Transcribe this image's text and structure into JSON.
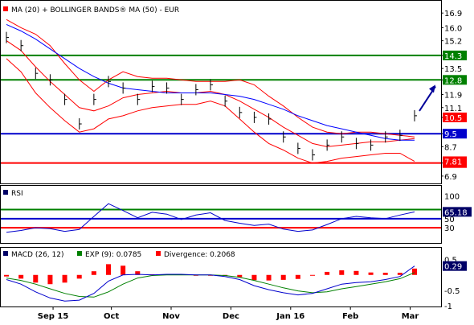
{
  "panels": {
    "price": {
      "legend": "MA (20) + BOLLINGER BANDS® MA (50) - EUR",
      "axis_ticks": [
        "16.9",
        "16.0",
        "15.2",
        "14.3",
        "13.5",
        "12.8",
        "11.9",
        "11.1",
        "10.5",
        "9.5",
        "8.7",
        "7.7",
        "6.9"
      ],
      "horizontal_levels": [
        {
          "value": 14.3,
          "label": "14.3",
          "color": "#008000"
        },
        {
          "value": 12.8,
          "label": "12.8",
          "color": "#008000"
        },
        {
          "value": 9.5,
          "label": "9.5",
          "color": "#0000cc"
        },
        {
          "value": 7.7,
          "label": "7.7",
          "color": "#ff0000"
        }
      ],
      "badges": [
        {
          "value": 10.5,
          "label": "10.5",
          "color": "#ff0000"
        },
        {
          "value": 7.81,
          "label": "7.81",
          "color": "#ff0000"
        }
      ]
    },
    "rsi": {
      "legend": "RSI",
      "axis_ticks": [
        "100",
        "50",
        "30"
      ],
      "levels": [
        {
          "value": 70,
          "color": "#008000"
        },
        {
          "value": 50,
          "color": "#0000cc"
        },
        {
          "value": 30,
          "color": "#ff0000"
        }
      ],
      "current_label": "65.18"
    },
    "macd": {
      "legend_macd": "MACD (26, 12)",
      "legend_exp": "EXP (9): 0.0785",
      "legend_div": "Divergence: 0.2068",
      "axis_ticks": [
        "0.5",
        "-0.5",
        "-1"
      ],
      "current_label": "0.29"
    }
  },
  "x_axis_labels": [
    "Sep 15",
    "Oct",
    "Nov",
    "Dec",
    "Jan 16",
    "Feb",
    "Mar"
  ],
  "colors": {
    "ma20": "#ff0000",
    "bollinger": "#ff0000",
    "ma50": "#0000ff",
    "price_bars": "#000000",
    "rsi_line": "#0000cc",
    "macd_line": "#0000cc",
    "exp_line": "#008000",
    "divergence_bars": "#ff0000",
    "forecast_arrow": "#000099"
  },
  "chart_data": [
    {
      "type": "line",
      "panel": "price",
      "ylim": [
        6.5,
        17.6
      ],
      "x": [
        "Aug 24 2015",
        "Aug 31 2015",
        "Sep 7 2015",
        "Sep 14 2015",
        "Sep 21 2015",
        "Sep 28 2015",
        "Oct 5 2015",
        "Oct 12 2015",
        "Oct 19 2015",
        "Oct 26 2015",
        "Nov 2 2015",
        "Nov 9 2015",
        "Nov 16 2015",
        "Nov 23 2015",
        "Nov 30 2015",
        "Dec 7 2015",
        "Dec 14 2015",
        "Dec 21 2015",
        "Dec 28 2015",
        "Jan 4 2016",
        "Jan 11 2016",
        "Jan 18 2016",
        "Jan 25 2016",
        "Feb 1 2016",
        "Feb 8 2016",
        "Feb 15 2016",
        "Feb 22 2016",
        "Feb 29 2016",
        "Mar 7 2016"
      ],
      "series": [
        {
          "name": "Price",
          "values": [
            15.4,
            14.9,
            13.2,
            12.8,
            11.6,
            10.1,
            11.6,
            12.7,
            12.3,
            11.6,
            12.4,
            12.3,
            11.6,
            12.2,
            12.5,
            11.5,
            10.8,
            10.5,
            10.4,
            9.3,
            8.6,
            8.2,
            8.8,
            9.3,
            8.9,
            8.8,
            9.3,
            9.4,
            10.6
          ]
        },
        {
          "name": "MA (20)",
          "values": [
            15.2,
            14.6,
            13.6,
            12.7,
            11.9,
            11.1,
            10.9,
            11.2,
            11.7,
            11.9,
            12.0,
            12.1,
            12.0,
            12.0,
            12.1,
            11.9,
            11.5,
            11.0,
            10.5,
            9.9,
            9.4,
            8.9,
            8.7,
            8.8,
            8.9,
            9.0,
            9.0,
            9.1,
            9.2
          ]
        },
        {
          "name": "Upper Band",
          "values": [
            16.5,
            16.0,
            15.6,
            14.9,
            13.8,
            12.8,
            12.1,
            12.8,
            13.3,
            13.0,
            12.9,
            12.9,
            12.8,
            12.7,
            12.7,
            12.7,
            12.8,
            12.5,
            11.8,
            11.2,
            10.5,
            9.9,
            9.6,
            9.5,
            9.6,
            9.6,
            9.5,
            9.4,
            9.3
          ]
        },
        {
          "name": "Lower Band",
          "values": [
            14.1,
            13.3,
            12.0,
            11.1,
            10.3,
            9.6,
            9.8,
            10.4,
            10.6,
            10.9,
            11.1,
            11.2,
            11.3,
            11.3,
            11.5,
            11.2,
            10.4,
            9.6,
            8.9,
            8.5,
            8.0,
            7.7,
            7.8,
            8.0,
            8.1,
            8.2,
            8.3,
            8.3,
            7.8
          ]
        },
        {
          "name": "MA (50)",
          "values": [
            16.2,
            15.8,
            15.3,
            14.7,
            14.1,
            13.5,
            13.0,
            12.6,
            12.3,
            12.2,
            12.1,
            12.0,
            12.0,
            12.0,
            12.0,
            11.9,
            11.8,
            11.6,
            11.3,
            11.0,
            10.6,
            10.3,
            10.0,
            9.8,
            9.6,
            9.4,
            9.2,
            9.1,
            9.1
          ]
        }
      ]
    },
    {
      "type": "line",
      "panel": "rsi",
      "ylim": [
        0,
        100
      ],
      "x": [
        "Aug 24 2015",
        "Aug 31 2015",
        "Sep 7 2015",
        "Sep 14 2015",
        "Sep 21 2015",
        "Sep 28 2015",
        "Oct 5 2015",
        "Oct 12 2015",
        "Oct 19 2015",
        "Oct 26 2015",
        "Nov 2 2015",
        "Nov 9 2015",
        "Nov 16 2015",
        "Nov 23 2015",
        "Nov 30 2015",
        "Dec 7 2015",
        "Dec 14 2015",
        "Dec 21 2015",
        "Dec 28 2015",
        "Jan 4 2016",
        "Jan 11 2016",
        "Jan 18 2016",
        "Jan 25 2016",
        "Feb 1 2016",
        "Feb 8 2016",
        "Feb 15 2016",
        "Feb 22 2016",
        "Feb 29 2016",
        "Mar 7 2016"
      ],
      "series": [
        {
          "name": "RSI",
          "values": [
            20,
            24,
            30,
            28,
            22,
            26,
            55,
            83,
            68,
            52,
            64,
            60,
            48,
            58,
            63,
            46,
            40,
            35,
            38,
            27,
            22,
            25,
            37,
            50,
            55,
            52,
            50,
            58,
            65
          ]
        }
      ]
    },
    {
      "type": "line",
      "panel": "macd",
      "ylim": [
        -1,
        0.7
      ],
      "x": [
        "Aug 24 2015",
        "Aug 31 2015",
        "Sep 7 2015",
        "Sep 14 2015",
        "Sep 21 2015",
        "Sep 28 2015",
        "Oct 5 2015",
        "Oct 12 2015",
        "Oct 19 2015",
        "Oct 26 2015",
        "Nov 2 2015",
        "Nov 9 2015",
        "Nov 16 2015",
        "Nov 23 2015",
        "Nov 30 2015",
        "Dec 7 2015",
        "Dec 14 2015",
        "Dec 21 2015",
        "Dec 28 2015",
        "Jan 4 2016",
        "Jan 11 2016",
        "Jan 18 2016",
        "Jan 25 2016",
        "Feb 1 2016",
        "Feb 8 2016",
        "Feb 15 2016",
        "Feb 22 2016",
        "Feb 29 2016",
        "Mar 7 2016"
      ],
      "series": [
        {
          "name": "MACD (26, 12)",
          "values": [
            -0.15,
            -0.3,
            -0.55,
            -0.75,
            -0.85,
            -0.82,
            -0.6,
            -0.2,
            0.0,
            0.02,
            0.0,
            0.02,
            0.02,
            0.0,
            0.0,
            -0.05,
            -0.15,
            -0.35,
            -0.48,
            -0.58,
            -0.65,
            -0.6,
            -0.45,
            -0.3,
            -0.25,
            -0.22,
            -0.15,
            -0.05,
            0.29
          ]
        },
        {
          "name": "EXP (9)",
          "values": [
            -0.1,
            -0.18,
            -0.3,
            -0.45,
            -0.6,
            -0.7,
            -0.72,
            -0.55,
            -0.3,
            -0.1,
            -0.02,
            0.0,
            0.0,
            0.0,
            0.0,
            -0.02,
            -0.08,
            -0.18,
            -0.3,
            -0.42,
            -0.52,
            -0.58,
            -0.55,
            -0.45,
            -0.38,
            -0.3,
            -0.22,
            -0.12,
            0.0785
          ]
        },
        {
          "name": "Divergence",
          "type": "bar",
          "values": [
            -0.05,
            -0.12,
            -0.25,
            -0.3,
            -0.25,
            -0.12,
            0.12,
            0.35,
            0.3,
            0.12,
            0.02,
            0.02,
            0.02,
            0.0,
            0.0,
            -0.03,
            -0.07,
            -0.17,
            -0.18,
            -0.16,
            -0.13,
            -0.02,
            0.1,
            0.15,
            0.13,
            0.08,
            0.07,
            0.07,
            0.2068
          ]
        }
      ]
    }
  ]
}
